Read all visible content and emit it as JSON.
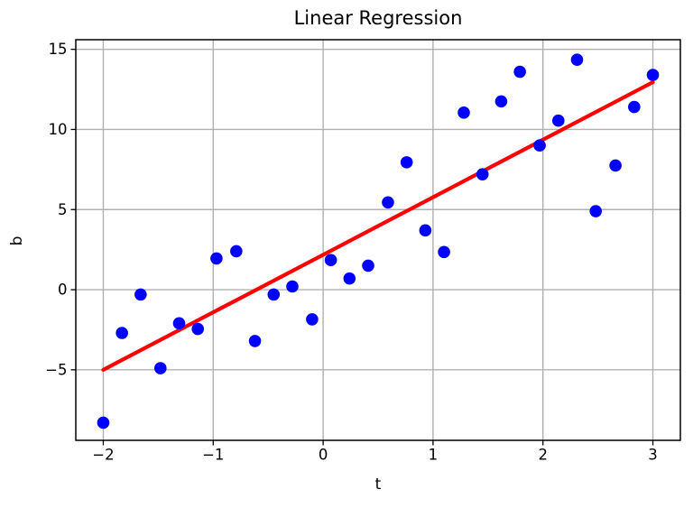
{
  "figure": {
    "title": "Linear Regression",
    "xlabel": "t",
    "ylabel": "b"
  },
  "colors": {
    "scatter": "#0000FF",
    "regression_line": "#FF0000",
    "grid": "#B0B0B0",
    "spine": "#000000",
    "text": "#000000",
    "background": "#FFFFFF"
  },
  "chart_data": {
    "type": "scatter",
    "title": "Linear Regression",
    "xlabel": "t",
    "ylabel": "b",
    "grid": true,
    "legend": false,
    "xlim": [
      -2.25,
      3.25
    ],
    "ylim": [
      -9.4,
      15.6
    ],
    "xticks": {
      "values": [
        -2,
        -1,
        0,
        1,
        2,
        3
      ],
      "labels": [
        "−2",
        "−1",
        "0",
        "1",
        "2",
        "3"
      ]
    },
    "yticks": {
      "values": [
        15,
        10,
        5,
        0,
        -5
      ],
      "labels": [
        "15",
        "10",
        "5",
        "0",
        "−5"
      ]
    },
    "series": [
      {
        "name": "data-points",
        "type": "scatter",
        "color": "#0000FF",
        "marker_radius": 6.8,
        "points": [
          [
            -2.0,
            -8.3
          ],
          [
            -1.83,
            -2.7
          ],
          [
            -1.66,
            -0.3
          ],
          [
            -1.48,
            -4.9
          ],
          [
            -1.31,
            -2.1
          ],
          [
            -1.14,
            -2.45
          ],
          [
            -0.97,
            1.95
          ],
          [
            -0.79,
            2.4
          ],
          [
            -0.62,
            -3.2
          ],
          [
            -0.45,
            -0.3
          ],
          [
            -0.28,
            0.2
          ],
          [
            -0.1,
            -1.85
          ],
          [
            0.07,
            1.85
          ],
          [
            0.24,
            0.7
          ],
          [
            0.41,
            1.5
          ],
          [
            0.59,
            5.45
          ],
          [
            0.76,
            7.95
          ],
          [
            0.93,
            3.7
          ],
          [
            1.1,
            2.35
          ],
          [
            1.28,
            11.05
          ],
          [
            1.45,
            7.2
          ],
          [
            1.62,
            11.75
          ],
          [
            1.79,
            13.6
          ],
          [
            1.97,
            9.0
          ],
          [
            2.14,
            10.55
          ],
          [
            2.31,
            14.35
          ],
          [
            2.48,
            4.9
          ],
          [
            2.66,
            7.75
          ],
          [
            2.83,
            11.4
          ],
          [
            3.0,
            13.4
          ]
        ]
      },
      {
        "name": "regression-line",
        "type": "line",
        "color": "#FF0000",
        "line_width": 4.2,
        "points": [
          [
            -2.0,
            -5.0
          ],
          [
            3.0,
            12.95
          ]
        ]
      }
    ]
  }
}
